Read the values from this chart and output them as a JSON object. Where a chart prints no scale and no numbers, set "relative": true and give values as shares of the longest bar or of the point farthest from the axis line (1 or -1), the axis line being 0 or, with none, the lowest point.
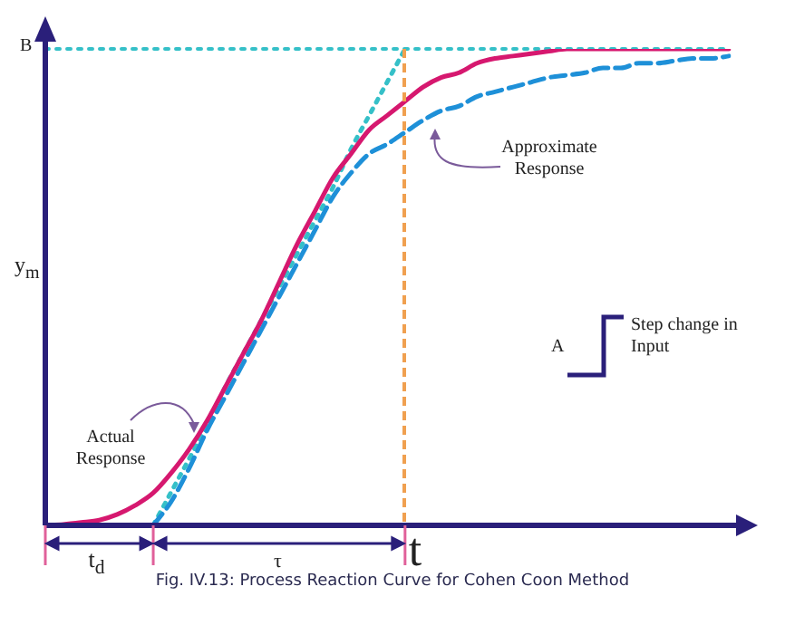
{
  "chart_data": {
    "type": "line",
    "relative": true,
    "xlabel": "t",
    "ylabel": "y$_{m}$",
    "categories": [
      null,
      null,
      null,
      null,
      null,
      null,
      null,
      null,
      null,
      null,
      null,
      null,
      null,
      null,
      null,
      null,
      null,
      null,
      null,
      null,
      null,
      null,
      null,
      null,
      null,
      null,
      null,
      null,
      null,
      null,
      null,
      null,
      null,
      null,
      null,
      null,
      null,
      null,
      null
    ],
    "series": [
      {
        "color": "#d6186f",
        "line_style": "solid",
        "values": [
          0,
          0.002,
          0.006,
          0.011,
          0.023,
          0.042,
          0.068,
          0.11,
          0.16,
          0.22,
          0.29,
          0.36,
          0.43,
          0.51,
          0.59,
          0.66,
          0.73,
          0.78,
          0.83,
          0.86,
          0.89,
          0.92,
          0.94,
          0.95,
          0.97,
          0.98,
          0.985,
          0.99,
          0.995,
          1,
          1,
          1,
          1,
          1,
          1,
          1,
          1,
          1,
          1
        ]
      },
      {
        "color": "#1e90d8",
        "line_style": "dashed",
        "values": [
          null,
          null,
          null,
          null,
          null,
          null,
          0,
          0.05,
          0.12,
          0.2,
          0.27,
          0.34,
          0.41,
          0.48,
          0.55,
          0.62,
          0.69,
          0.74,
          0.78,
          0.8,
          0.825,
          0.85,
          0.87,
          0.88,
          0.9,
          0.91,
          0.92,
          0.93,
          0.94,
          0.945,
          0.95,
          0.96,
          0.96,
          0.97,
          0.97,
          0.975,
          0.98,
          0.98,
          0.985
        ]
      },
      {
        "color": "#35c0c8",
        "line_style": "dotted",
        "values": [
          null,
          null,
          null,
          null,
          null,
          null,
          0,
          0.07,
          0.14,
          0.21,
          0.29,
          0.36,
          0.43,
          0.5,
          0.57,
          0.64,
          0.71,
          0.79,
          0.86,
          0.93,
          1,
          null,
          null,
          null,
          null,
          null,
          null,
          null,
          null,
          null,
          null,
          null,
          null,
          null,
          null,
          null,
          null,
          null,
          null
        ]
      }
    ],
    "ref_lines": [
      {
        "axis": "y",
        "value": 1,
        "label": "B",
        "color": "#35c0c8",
        "line_style": "dotted"
      }
    ],
    "annotations": [
      "Approximate Response",
      "Actual Response",
      "A",
      "Step change in Input",
      "t$_{d}$",
      "τ",
      "Fig. IV.13: Process Reaction Curve for Cohen Coon Method"
    ],
    "marker": "none",
    "legend": false
  }
}
